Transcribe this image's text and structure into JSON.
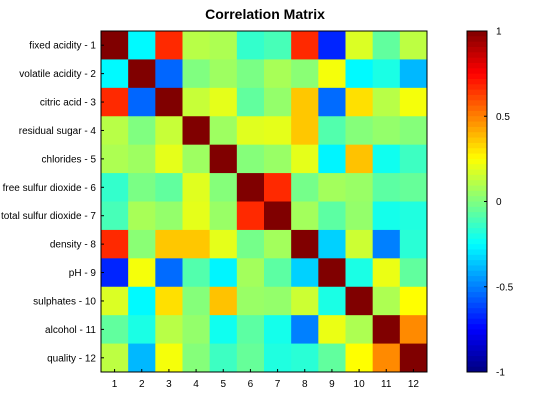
{
  "chart_data": {
    "type": "heatmap",
    "title": "Correlation Matrix",
    "row_labels": [
      "fixed acidity - 1",
      "volatile acidity - 2",
      "citric acid - 3",
      "residual sugar - 4",
      "chlorides - 5",
      "free sulfur dioxide - 6",
      "total sulfur dioxide - 7",
      "density - 8",
      "pH - 9",
      "sulphates - 10",
      "alcohol - 11",
      "quality - 12"
    ],
    "col_labels": [
      "1",
      "2",
      "3",
      "4",
      "5",
      "6",
      "7",
      "8",
      "9",
      "10",
      "11",
      "12"
    ],
    "values": [
      [
        1.0,
        -0.26,
        0.67,
        0.11,
        0.09,
        -0.15,
        -0.11,
        0.67,
        -0.68,
        0.18,
        -0.06,
        0.12
      ],
      [
        -0.26,
        1.0,
        -0.55,
        0.0,
        0.06,
        -0.01,
        0.08,
        0.02,
        0.23,
        -0.26,
        -0.2,
        -0.39
      ],
      [
        0.67,
        -0.55,
        1.0,
        0.14,
        0.2,
        -0.06,
        0.04,
        0.36,
        -0.54,
        0.31,
        0.11,
        0.23
      ],
      [
        0.11,
        0.0,
        0.14,
        1.0,
        0.06,
        0.19,
        0.2,
        0.36,
        -0.09,
        0.01,
        0.04,
        0.01
      ],
      [
        0.09,
        0.06,
        0.2,
        0.06,
        1.0,
        0.01,
        0.05,
        0.2,
        -0.27,
        0.37,
        -0.22,
        -0.13
      ],
      [
        -0.15,
        -0.01,
        -0.06,
        0.19,
        0.01,
        1.0,
        0.67,
        -0.02,
        0.07,
        0.05,
        -0.07,
        -0.05
      ],
      [
        -0.11,
        0.08,
        0.04,
        0.2,
        0.05,
        0.67,
        1.0,
        0.07,
        -0.07,
        0.04,
        -0.21,
        -0.19
      ],
      [
        0.67,
        0.02,
        0.36,
        0.36,
        0.2,
        -0.02,
        0.07,
        1.0,
        -0.34,
        0.15,
        -0.5,
        -0.17
      ],
      [
        -0.68,
        0.23,
        -0.54,
        -0.09,
        -0.27,
        0.07,
        -0.07,
        -0.34,
        1.0,
        -0.2,
        0.21,
        -0.06
      ],
      [
        0.18,
        -0.26,
        0.31,
        0.01,
        0.37,
        0.05,
        0.04,
        0.15,
        -0.2,
        1.0,
        0.09,
        0.25
      ],
      [
        -0.06,
        -0.2,
        0.11,
        0.04,
        -0.22,
        -0.07,
        -0.21,
        -0.5,
        0.21,
        0.09,
        1.0,
        0.48
      ],
      [
        0.12,
        -0.39,
        0.23,
        0.01,
        -0.13,
        -0.05,
        -0.19,
        -0.17,
        -0.06,
        0.25,
        0.48,
        1.0
      ]
    ],
    "colormap": "jet",
    "clim": [
      -1,
      1
    ],
    "colorbar_ticks": [
      1,
      0.5,
      0,
      -0.5,
      -1
    ],
    "colorbar_tick_labels": [
      "1",
      "0.5",
      "0",
      "-0.5",
      "-1"
    ]
  }
}
